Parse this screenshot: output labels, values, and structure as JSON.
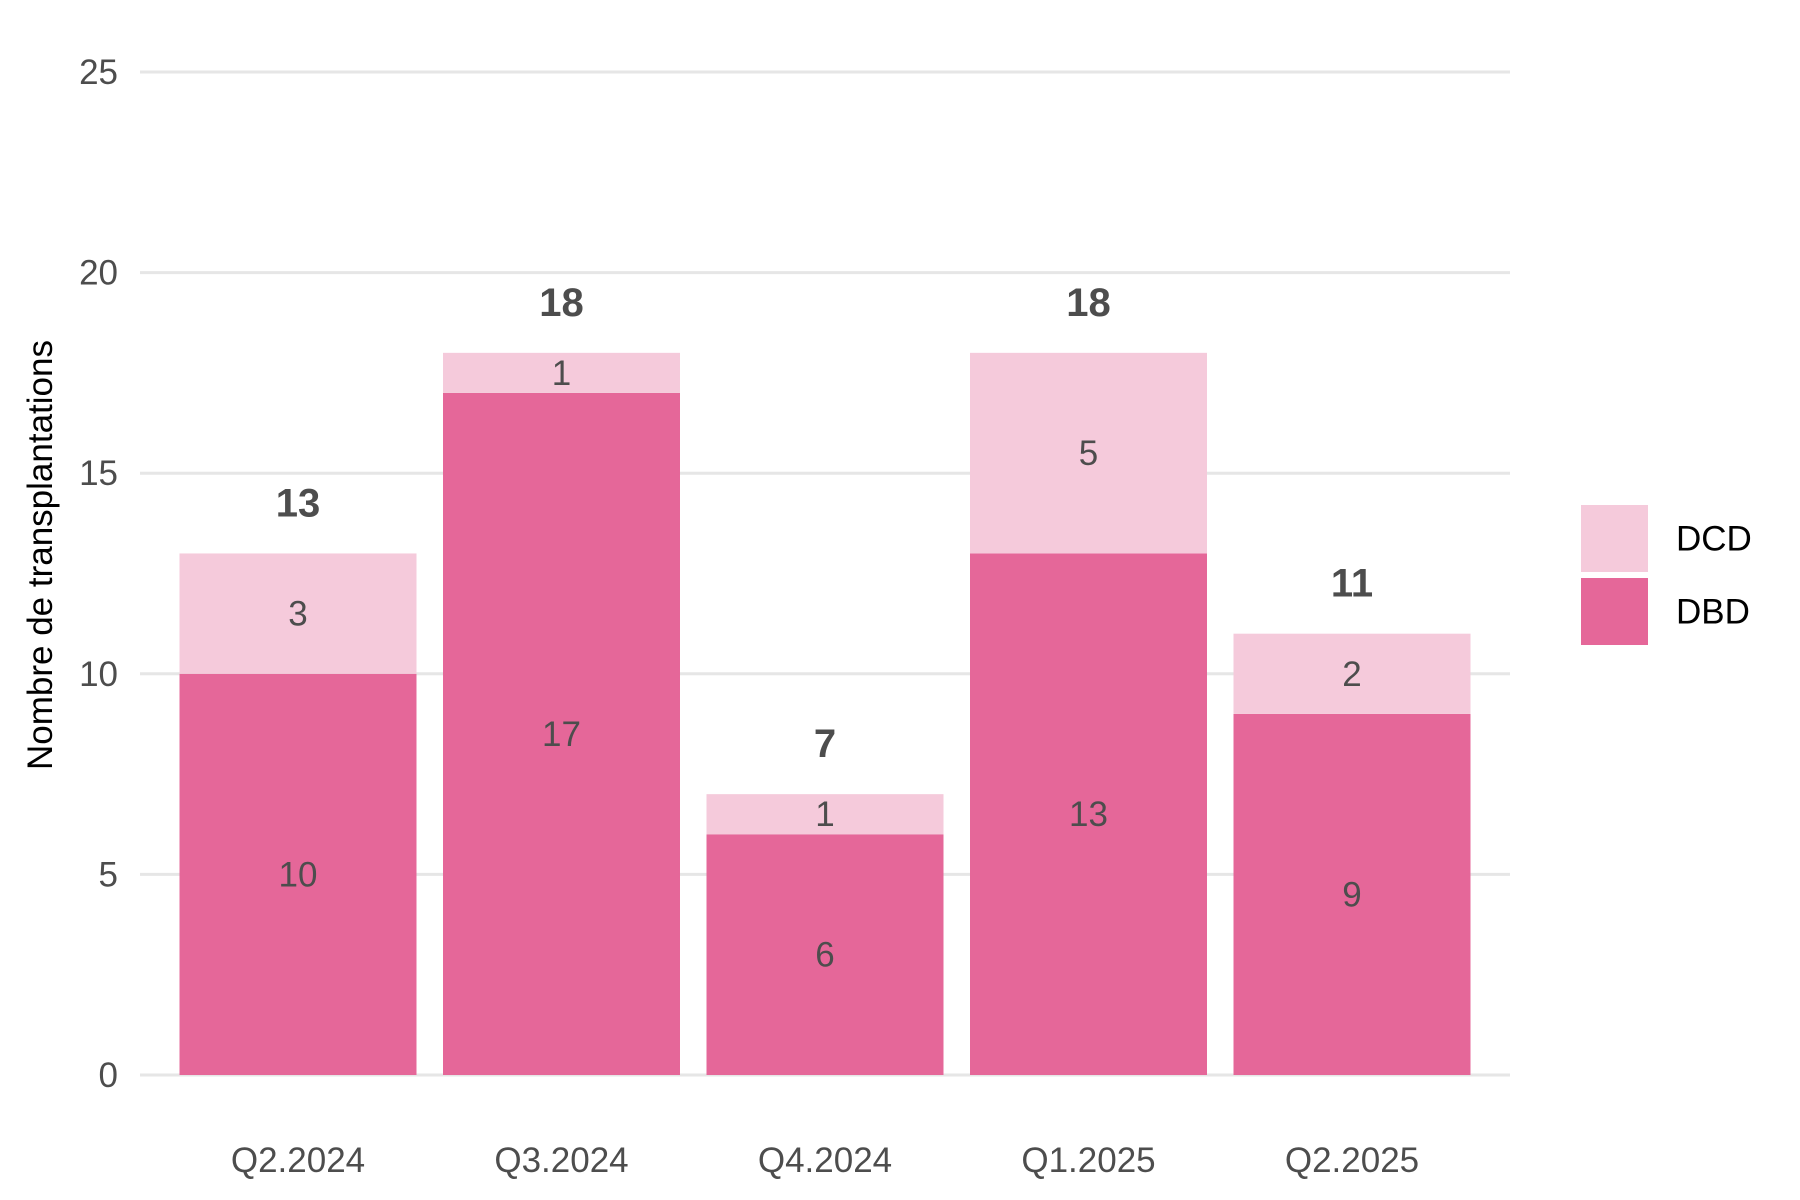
{
  "chart_data": {
    "type": "bar",
    "stacked": true,
    "categories": [
      "Q2.2024",
      "Q3.2024",
      "Q4.2024",
      "Q1.2025",
      "Q2.2025"
    ],
    "series": [
      {
        "name": "DBD",
        "values": [
          10,
          17,
          6,
          13,
          9
        ],
        "color": "#e56799"
      },
      {
        "name": "DCD",
        "values": [
          3,
          1,
          1,
          5,
          2
        ],
        "color": "#f5cadb"
      }
    ],
    "totals": [
      13,
      18,
      7,
      18,
      11
    ],
    "ylabel": "Nombre de transplantations",
    "xlabel": "",
    "ylim": [
      0,
      25
    ],
    "yticks": [
      0,
      5,
      10,
      15,
      20,
      25
    ],
    "grid": true,
    "legend_position": "right",
    "legend_order": [
      "DCD",
      "DBD"
    ]
  }
}
